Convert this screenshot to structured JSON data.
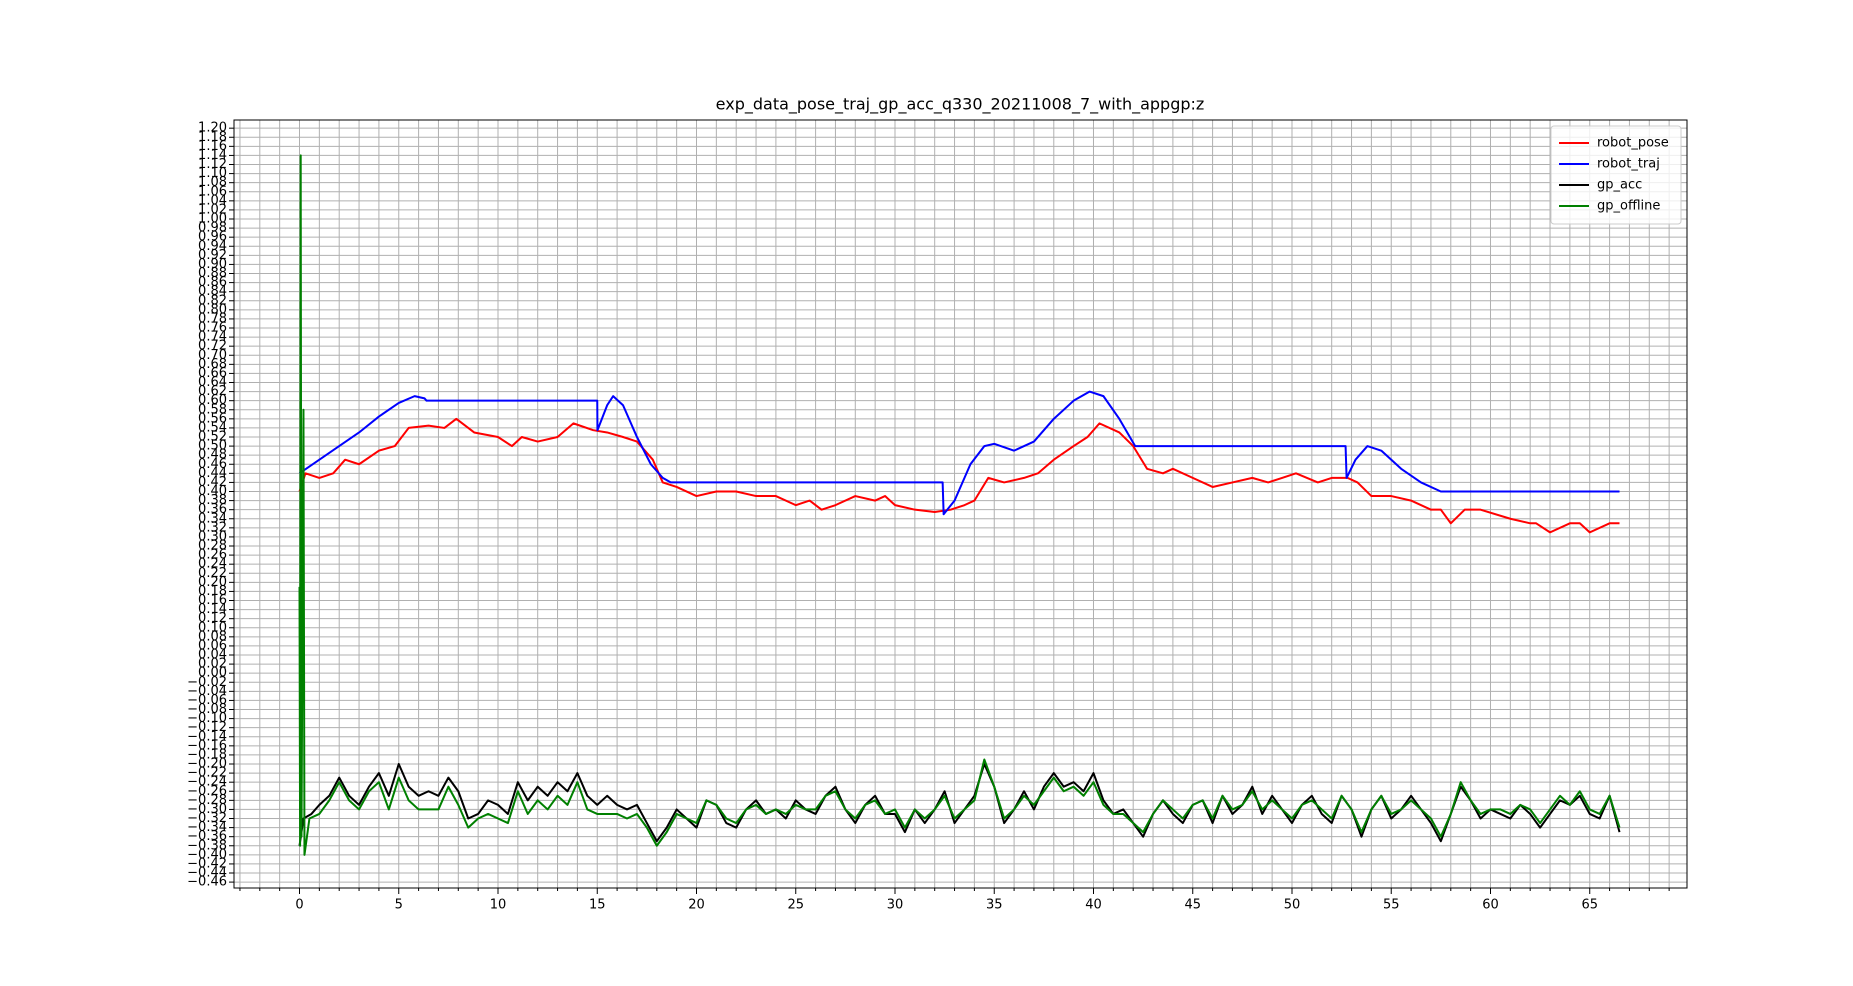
{
  "chart_data": {
    "type": "line",
    "title": "exp_data_pose_traj_gp_acc_q330_20211008_7_with_appgp:z",
    "xlim": [
      -3.3,
      69.9
    ],
    "ylim": [
      -0.473,
      1.218
    ],
    "xticks": [
      0,
      5,
      10,
      15,
      20,
      25,
      30,
      35,
      40,
      45,
      50,
      55,
      60,
      65
    ],
    "xminorticks": [
      -3,
      -2,
      -1,
      1,
      2,
      3,
      4,
      6,
      7,
      8,
      9,
      11,
      12,
      13,
      14,
      16,
      17,
      18,
      19,
      21,
      22,
      23,
      24,
      26,
      27,
      28,
      29,
      31,
      32,
      33,
      34,
      36,
      37,
      38,
      39,
      41,
      42,
      43,
      44,
      46,
      47,
      48,
      49,
      51,
      52,
      53,
      54,
      56,
      57,
      58,
      59,
      61,
      62,
      63,
      64,
      66,
      67,
      68,
      69
    ],
    "yticks": [
      {
        "value": -0.46,
        "label": "−0.46"
      },
      {
        "value": -0.44,
        "label": "−0.44"
      },
      {
        "value": -0.42,
        "label": "−0.42"
      },
      {
        "value": -0.4,
        "label": "−0.40"
      },
      {
        "value": -0.38,
        "label": "−0.38"
      },
      {
        "value": -0.36,
        "label": "−0.36"
      },
      {
        "value": -0.34,
        "label": "−0.34"
      },
      {
        "value": -0.32,
        "label": "−0.32"
      },
      {
        "value": -0.3,
        "label": "−0.30"
      },
      {
        "value": -0.28,
        "label": "−0.28"
      },
      {
        "value": -0.26,
        "label": "−0.26"
      },
      {
        "value": -0.24,
        "label": "−0.24"
      },
      {
        "value": -0.22,
        "label": "−0.22"
      },
      {
        "value": -0.2,
        "label": "−0.20"
      },
      {
        "value": -0.18,
        "label": "−0.18"
      },
      {
        "value": -0.16,
        "label": "−0.16"
      },
      {
        "value": -0.14,
        "label": "−0.14"
      },
      {
        "value": -0.12,
        "label": "−0.12"
      },
      {
        "value": -0.1,
        "label": "−0.10"
      },
      {
        "value": -0.08,
        "label": "−0.08"
      },
      {
        "value": -0.06,
        "label": "−0.06"
      },
      {
        "value": -0.04,
        "label": "−0.04"
      },
      {
        "value": -0.02,
        "label": "−0.02"
      },
      {
        "value": 0,
        "label": "0.00"
      },
      0.02,
      0.04,
      0.06,
      0.08,
      {
        "value": 0.1,
        "label": "0.10"
      },
      0.12,
      0.14,
      0.16,
      0.18,
      {
        "value": 0.2,
        "label": "0.20"
      },
      0.22,
      0.24,
      0.26,
      0.28,
      {
        "value": 0.3,
        "label": "0.30"
      },
      0.32,
      0.34,
      0.36,
      0.38,
      {
        "value": 0.4,
        "label": "0.40"
      },
      0.42,
      0.44,
      0.46,
      0.48,
      {
        "value": 0.5,
        "label": "0.50"
      },
      0.52,
      0.54,
      0.56,
      0.58,
      {
        "value": 0.6,
        "label": "0.60"
      },
      0.62,
      0.64,
      0.66,
      0.68,
      {
        "value": 0.7,
        "label": "0.70"
      },
      0.72,
      0.74,
      0.76,
      0.78,
      {
        "value": 0.8,
        "label": "0.80"
      },
      0.82,
      0.84,
      0.86,
      0.88,
      {
        "value": 0.9,
        "label": "0.90"
      },
      0.92,
      0.94,
      0.96,
      0.98,
      {
        "value": 1,
        "label": "1.00"
      },
      1.02,
      1.04,
      1.06,
      1.08,
      {
        "value": 1.1,
        "label": "1.10"
      },
      1.12,
      1.14,
      1.16,
      1.18,
      {
        "value": 1.2,
        "label": "1.20"
      }
    ],
    "grid": true,
    "legend": "upper right",
    "series": [
      {
        "name": "robot_pose",
        "color": "#ff0000",
        "x": [
          0,
          0.3,
          1,
          1.7,
          2.3,
          3,
          4,
          4.8,
          5.5,
          6.5,
          7.3,
          7.9,
          8.8,
          10,
          10.7,
          11.2,
          12,
          13,
          13.8,
          14.8,
          15.5,
          16.3,
          17,
          17.8,
          18.3,
          19,
          20,
          21,
          22,
          23,
          24,
          25,
          25.7,
          26.3,
          27,
          28,
          29,
          29.5,
          30,
          31,
          32,
          32.8,
          33.5,
          34,
          34.7,
          35.5,
          36.5,
          37.2,
          38,
          39,
          39.7,
          40.3,
          41.3,
          42,
          42.7,
          43.5,
          44,
          45,
          46,
          47,
          48,
          48.8,
          49.5,
          50.2,
          51.3,
          52,
          52.8,
          53.3,
          54,
          55,
          56,
          57,
          57.5,
          58,
          58.7,
          59.5,
          61,
          62,
          62.3,
          63,
          64,
          64.5,
          65,
          66,
          66.5
        ],
        "values": [
          0.4,
          0.44,
          0.43,
          0.44,
          0.47,
          0.46,
          0.49,
          0.5,
          0.54,
          0.545,
          0.54,
          0.56,
          0.53,
          0.52,
          0.5,
          0.52,
          0.51,
          0.52,
          0.55,
          0.535,
          0.53,
          0.52,
          0.51,
          0.47,
          0.42,
          0.41,
          0.39,
          0.4,
          0.4,
          0.39,
          0.39,
          0.37,
          0.38,
          0.36,
          0.37,
          0.39,
          0.38,
          0.39,
          0.37,
          0.36,
          0.355,
          0.36,
          0.37,
          0.38,
          0.43,
          0.42,
          0.43,
          0.44,
          0.47,
          0.5,
          0.52,
          0.55,
          0.53,
          0.5,
          0.45,
          0.44,
          0.45,
          0.43,
          0.41,
          0.42,
          0.43,
          0.42,
          0.43,
          0.44,
          0.42,
          0.43,
          0.43,
          0.42,
          0.39,
          0.39,
          0.38,
          0.36,
          0.36,
          0.33,
          0.36,
          0.36,
          0.34,
          0.33,
          0.33,
          0.31,
          0.33,
          0.33,
          0.31,
          0.33,
          0.33
        ]
      },
      {
        "name": "robot_traj",
        "color": "#0000ff",
        "x": [
          0,
          1,
          2,
          3,
          4,
          5,
          5.8,
          6.3,
          6.4,
          15,
          15.01,
          15.5,
          15.8,
          16.3,
          17,
          17.7,
          18.3,
          18.7,
          32.4,
          32.45,
          33,
          33.8,
          34.5,
          35,
          36,
          37,
          38,
          39,
          39.8,
          40.5,
          41.3,
          42.1,
          52.7,
          52.75,
          53.2,
          53.8,
          54.5,
          55.5,
          56.5,
          57.5,
          66.5
        ],
        "values": [
          0.44,
          0.47,
          0.5,
          0.53,
          0.565,
          0.595,
          0.61,
          0.605,
          0.6,
          0.6,
          0.535,
          0.59,
          0.61,
          0.59,
          0.52,
          0.46,
          0.43,
          0.42,
          0.42,
          0.35,
          0.38,
          0.46,
          0.5,
          0.505,
          0.49,
          0.51,
          0.56,
          0.6,
          0.62,
          0.61,
          0.56,
          0.5,
          0.5,
          0.43,
          0.47,
          0.5,
          0.49,
          0.45,
          0.42,
          0.4,
          0.4
        ]
      },
      {
        "name": "gp_acc",
        "color": "#000000",
        "x": [
          0,
          0.2,
          0.6,
          1,
          1.5,
          2,
          2.5,
          3,
          3.5,
          4,
          4.5,
          5,
          5.5,
          6,
          6.5,
          7,
          7.5,
          8,
          8.5,
          9,
          9.5,
          10,
          10.5,
          11,
          11.5,
          12,
          12.5,
          13,
          13.5,
          14,
          14.5,
          15,
          15.5,
          16,
          16.5,
          17,
          17.5,
          18,
          18.5,
          19,
          19.5,
          20,
          20.5,
          21,
          21.5,
          22,
          22.5,
          23,
          23.5,
          24,
          24.5,
          25,
          25.5,
          26,
          26.5,
          27,
          27.5,
          28,
          28.5,
          29,
          29.5,
          30,
          30.5,
          31,
          31.5,
          32,
          32.5,
          33,
          33.5,
          34,
          34.5,
          35,
          35.5,
          36,
          36.5,
          37,
          37.5,
          38,
          38.5,
          39,
          39.5,
          40,
          40.5,
          41,
          41.5,
          42,
          42.5,
          43,
          43.5,
          44,
          44.5,
          45,
          45.5,
          46,
          46.5,
          47,
          47.5,
          48,
          48.5,
          49,
          49.5,
          50,
          50.5,
          51,
          51.5,
          52,
          52.5,
          53,
          53.5,
          54,
          54.5,
          55,
          55.5,
          56,
          56.5,
          57,
          57.5,
          58,
          58.5,
          59,
          59.5,
          60,
          60.5,
          61,
          61.5,
          62,
          62.5,
          63,
          63.5,
          64,
          64.5,
          65,
          65.5,
          66,
          66.5
        ],
        "values": [
          -0.38,
          -0.32,
          -0.31,
          -0.29,
          -0.27,
          -0.23,
          -0.27,
          -0.29,
          -0.25,
          -0.22,
          -0.27,
          -0.2,
          -0.25,
          -0.27,
          -0.26,
          -0.27,
          -0.23,
          -0.26,
          -0.32,
          -0.31,
          -0.28,
          -0.29,
          -0.31,
          -0.24,
          -0.28,
          -0.25,
          -0.27,
          -0.24,
          -0.26,
          -0.22,
          -0.27,
          -0.29,
          -0.27,
          -0.29,
          -0.3,
          -0.29,
          -0.33,
          -0.37,
          -0.34,
          -0.3,
          -0.32,
          -0.34,
          -0.28,
          -0.29,
          -0.33,
          -0.34,
          -0.3,
          -0.28,
          -0.31,
          -0.3,
          -0.32,
          -0.28,
          -0.3,
          -0.31,
          -0.27,
          -0.25,
          -0.3,
          -0.33,
          -0.29,
          -0.27,
          -0.31,
          -0.31,
          -0.35,
          -0.3,
          -0.33,
          -0.3,
          -0.26,
          -0.33,
          -0.3,
          -0.27,
          -0.2,
          -0.25,
          -0.33,
          -0.3,
          -0.26,
          -0.3,
          -0.25,
          -0.22,
          -0.25,
          -0.24,
          -0.26,
          -0.22,
          -0.28,
          -0.31,
          -0.3,
          -0.33,
          -0.36,
          -0.31,
          -0.28,
          -0.31,
          -0.33,
          -0.29,
          -0.28,
          -0.33,
          -0.27,
          -0.31,
          -0.29,
          -0.25,
          -0.31,
          -0.27,
          -0.3,
          -0.33,
          -0.29,
          -0.27,
          -0.31,
          -0.33,
          -0.27,
          -0.3,
          -0.36,
          -0.3,
          -0.27,
          -0.32,
          -0.3,
          -0.27,
          -0.3,
          -0.33,
          -0.37,
          -0.31,
          -0.25,
          -0.28,
          -0.32,
          -0.3,
          -0.31,
          -0.32,
          -0.29,
          -0.31,
          -0.34,
          -0.31,
          -0.28,
          -0.29,
          -0.27,
          -0.31,
          -0.32,
          -0.27,
          -0.35
        ]
      },
      {
        "name": "gp_offline",
        "color": "#008000",
        "x": [
          0,
          0.03,
          0.06,
          0.1,
          0.2,
          0.25,
          0.5,
          1,
          1.5,
          2,
          2.5,
          3,
          3.5,
          4,
          4.5,
          5,
          5.5,
          6,
          6.5,
          7,
          7.5,
          8,
          8.5,
          9,
          9.5,
          10,
          10.5,
          11,
          11.5,
          12,
          12.5,
          13,
          13.5,
          14,
          14.5,
          15,
          15.5,
          16,
          16.5,
          17,
          17.5,
          18,
          18.5,
          19,
          19.5,
          20,
          20.5,
          21,
          21.5,
          22,
          22.5,
          23,
          23.5,
          24,
          24.5,
          25,
          25.5,
          26,
          26.5,
          27,
          27.5,
          28,
          28.5,
          29,
          29.5,
          30,
          30.5,
          31,
          31.5,
          32,
          32.5,
          33,
          33.5,
          34,
          34.5,
          35,
          35.5,
          36,
          36.5,
          37,
          37.5,
          38,
          38.5,
          39,
          39.5,
          40,
          40.5,
          41,
          41.5,
          42,
          42.5,
          43,
          43.5,
          44,
          44.5,
          45,
          45.5,
          46,
          46.5,
          47,
          47.5,
          48,
          48.5,
          49,
          49.5,
          50,
          50.5,
          51,
          51.5,
          52,
          52.5,
          53,
          53.5,
          54,
          54.5,
          55,
          55.5,
          56,
          56.5,
          57,
          57.5,
          58,
          58.5,
          59,
          59.5,
          60,
          60.5,
          61,
          61.5,
          62,
          62.5,
          63,
          63.5,
          64,
          64.5,
          65,
          65.5,
          66,
          66.5
        ],
        "values": [
          0.19,
          -0.38,
          1.14,
          -0.36,
          0.58,
          -0.4,
          -0.32,
          -0.31,
          -0.28,
          -0.24,
          -0.28,
          -0.3,
          -0.26,
          -0.24,
          -0.3,
          -0.23,
          -0.28,
          -0.3,
          -0.3,
          -0.3,
          -0.25,
          -0.29,
          -0.34,
          -0.32,
          -0.31,
          -0.32,
          -0.33,
          -0.26,
          -0.31,
          -0.28,
          -0.3,
          -0.27,
          -0.29,
          -0.24,
          -0.3,
          -0.31,
          -0.31,
          -0.31,
          -0.32,
          -0.31,
          -0.34,
          -0.38,
          -0.35,
          -0.31,
          -0.32,
          -0.33,
          -0.28,
          -0.29,
          -0.32,
          -0.33,
          -0.3,
          -0.29,
          -0.31,
          -0.3,
          -0.31,
          -0.29,
          -0.3,
          -0.3,
          -0.27,
          -0.26,
          -0.3,
          -0.32,
          -0.29,
          -0.28,
          -0.31,
          -0.3,
          -0.34,
          -0.3,
          -0.32,
          -0.3,
          -0.27,
          -0.32,
          -0.3,
          -0.28,
          -0.19,
          -0.25,
          -0.32,
          -0.3,
          -0.27,
          -0.29,
          -0.26,
          -0.23,
          -0.26,
          -0.25,
          -0.27,
          -0.24,
          -0.29,
          -0.31,
          -0.31,
          -0.33,
          -0.35,
          -0.31,
          -0.28,
          -0.3,
          -0.32,
          -0.29,
          -0.28,
          -0.32,
          -0.27,
          -0.3,
          -0.29,
          -0.26,
          -0.3,
          -0.28,
          -0.3,
          -0.32,
          -0.29,
          -0.28,
          -0.3,
          -0.32,
          -0.27,
          -0.3,
          -0.35,
          -0.3,
          -0.27,
          -0.31,
          -0.3,
          -0.28,
          -0.3,
          -0.32,
          -0.36,
          -0.31,
          -0.24,
          -0.28,
          -0.31,
          -0.3,
          -0.3,
          -0.31,
          -0.29,
          -0.3,
          -0.33,
          -0.3,
          -0.27,
          -0.29,
          -0.26,
          -0.3,
          -0.31,
          -0.27,
          -0.34
        ]
      }
    ]
  }
}
